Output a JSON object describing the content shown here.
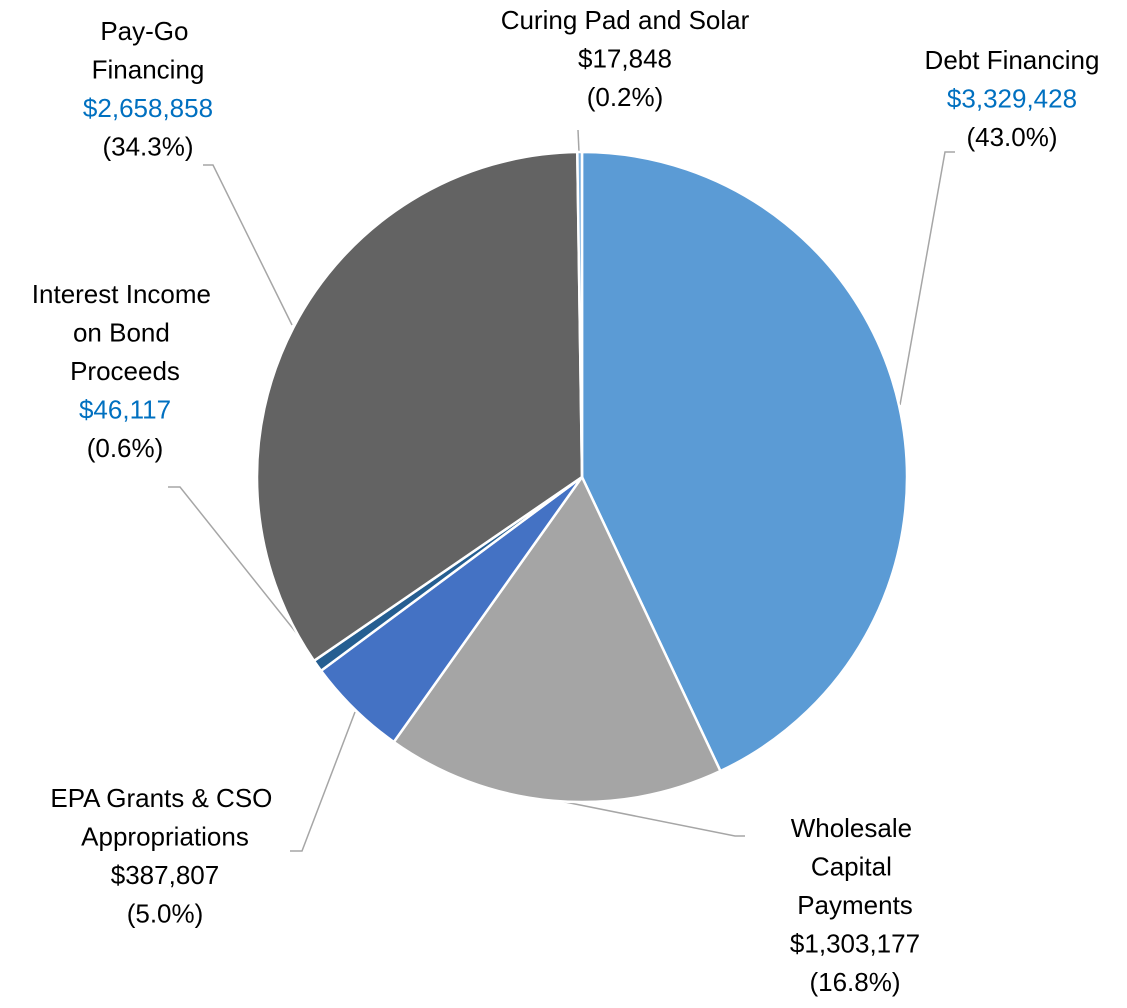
{
  "chart_data": {
    "type": "pie",
    "categories": [
      "Debt Financing",
      "Wholesale Capital Payments",
      "EPA Grants & CSO Appropriations",
      "Interest Income on Bond Proceeds",
      "Pay-Go Financing",
      "Curing Pad and Solar"
    ],
    "values": [
      3329428,
      1303177,
      387807,
      46117,
      2658858,
      17848
    ],
    "value_labels": [
      "$3,329,428",
      "$1,303,177",
      "$387,807",
      "$46,117",
      "$2,658,858",
      "$17,848"
    ],
    "percent_labels": [
      "(43.0%)",
      "(16.8%)",
      "(5.0%)",
      "(0.6%)",
      "(34.3%)",
      "(0.2%)"
    ],
    "colors": [
      "#5b9bd5",
      "#a5a5a5",
      "#4472c4",
      "#255e91",
      "#636363",
      "#7cafdd"
    ],
    "value_label_colors": [
      "#0070c0",
      "#000000",
      "#000000",
      "#0070c0",
      "#0070c0",
      "#000000"
    ]
  }
}
